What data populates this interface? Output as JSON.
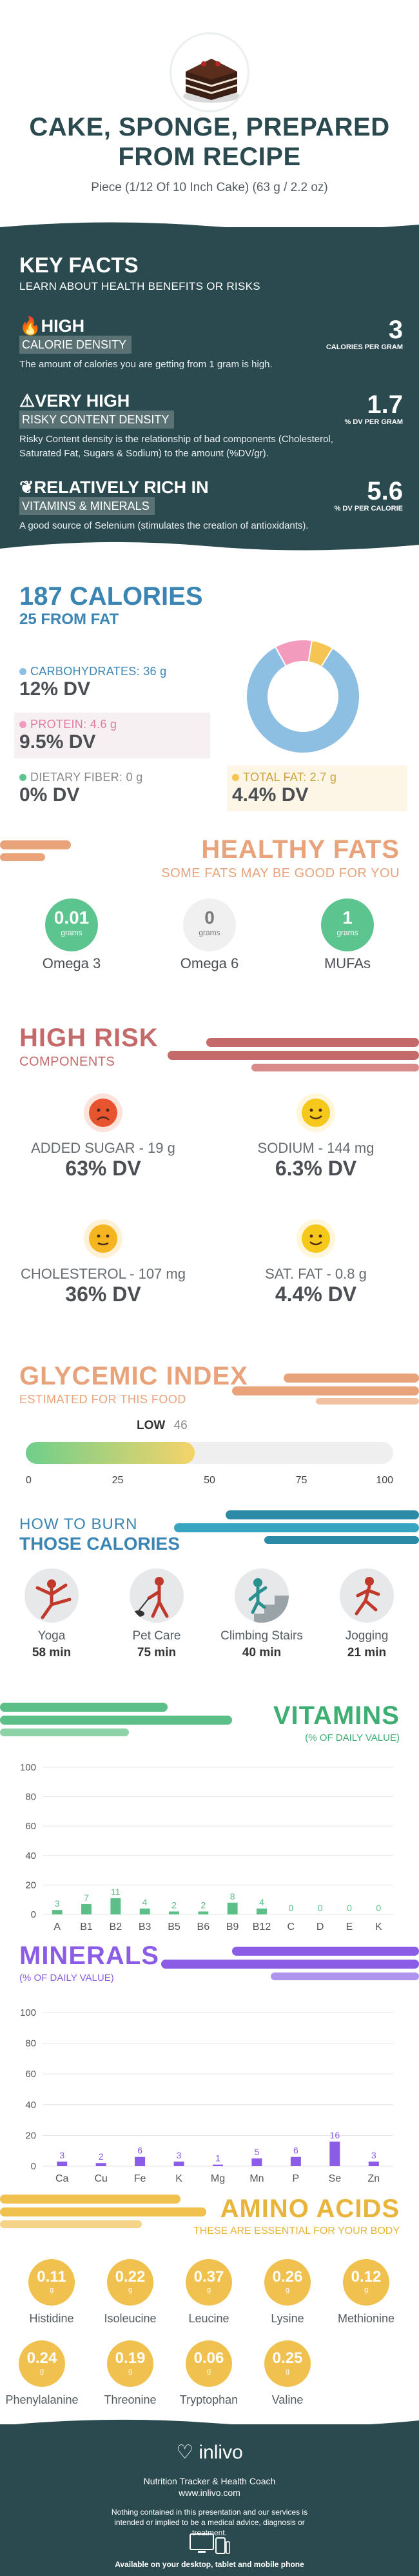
{
  "header": {
    "title_line1": "CAKE, SPONGE, PREPARED",
    "title_line2": "FROM RECIPE",
    "subtitle": "Piece (1/12 Of 10 Inch Cake) (63 g / 2.2 oz)"
  },
  "key_facts": {
    "title": "KEY FACTS",
    "subtitle": "LEARN ABOUT HEALTH BENEFITS OR RISKS",
    "items": [
      {
        "icon": "flame-icon",
        "level": "HIGH",
        "label": "CALORIE DENSITY",
        "desc": "The amount of calories you are getting from 1 gram is high.",
        "value": "3",
        "unit": "CALORIES PER GRAM"
      },
      {
        "icon": "warning-icon",
        "level": "VERY HIGH",
        "label": "RISKY CONTENT DENSITY",
        "desc": "Risky Content density is the relationship of bad components (Cholesterol, Saturated Fat, Sugars & Sodium) to the amount (%DV/gr).",
        "value": "1.7",
        "unit": "% DV PER GRAM"
      },
      {
        "icon": "leaf-icon",
        "level": "RELATIVELY RICH  IN",
        "label": "VITAMINS & MINERALS",
        "desc": "A good source of Selenium (stimulates the creation of antioxidants).",
        "value": "5.6",
        "unit": "% DV PER CALORIE"
      }
    ]
  },
  "calories": {
    "title": "187 CALORIES",
    "from_fat": "25 FROM FAT",
    "nutrients": [
      {
        "label": "CARBOHYDRATES: 36 g",
        "dv": "12% DV",
        "color": "#8dbfe3"
      },
      {
        "label": "PROTEIN: 4.6 g",
        "dv": "9.5% DV",
        "color": "#f29bbd"
      },
      {
        "label": "DIETARY FIBER: 0 g",
        "dv": "0% DV",
        "color": "#5cc58f"
      },
      {
        "label": "TOTAL FAT: 2.7 g",
        "dv": "4.4% DV",
        "color": "#f6c453"
      }
    ]
  },
  "chart_data": {
    "type": "pie",
    "title": "",
    "slices": [
      {
        "label": "Carbohydrates",
        "value": 36,
        "color": "#8dbfe3"
      },
      {
        "label": "Protein",
        "value": 4.6,
        "color": "#f29bbd"
      },
      {
        "label": "Total Fat",
        "value": 2.7,
        "color": "#f6c453"
      }
    ]
  },
  "healthy_fats": {
    "title": "HEALTHY FATS",
    "subtitle": "SOME FATS MAY BE GOOD FOR YOU",
    "items": [
      {
        "name": "Omega 3",
        "value": "0.01",
        "unit": "grams",
        "color": "#5cc58f"
      },
      {
        "name": "Omega 6",
        "value": "0",
        "unit": "grams",
        "color": "#f0f0f0"
      },
      {
        "name": "MUFAs",
        "value": "1",
        "unit": "grams",
        "color": "#5cc58f"
      }
    ]
  },
  "high_risk": {
    "title": "HIGH RISK",
    "subtitle": "COMPONENTS",
    "items": [
      {
        "label": "ADDED SUGAR - 19 g",
        "dv": "63% DV",
        "face": "sad-face-icon"
      },
      {
        "label": "SODIUM - 144 mg",
        "dv": "6.3% DV",
        "face": "happy-face-icon"
      },
      {
        "label": "CHOLESTEROL - 107 mg",
        "dv": "36% DV",
        "face": "neutral-face-icon"
      },
      {
        "label": "SAT. FAT - 0.8 g",
        "dv": "4.4% DV",
        "face": "happy-face-icon"
      }
    ]
  },
  "glycemic": {
    "title": "GLYCEMIC INDEX",
    "subtitle": "ESTIMATED FOR THIS FOOD",
    "level": "LOW",
    "value": 46,
    "ticks": [
      "0",
      "25",
      "50",
      "75",
      "100"
    ]
  },
  "burn": {
    "title_line1": "HOW TO BURN",
    "title_line2": "THOSE CALORIES",
    "activities": [
      {
        "name": "Yoga",
        "minutes": "58 min",
        "icon": "yoga-icon"
      },
      {
        "name": "Pet Care",
        "minutes": "75 min",
        "icon": "dog-walking-icon"
      },
      {
        "name": "Climbing Stairs",
        "minutes": "40 min",
        "icon": "stairs-icon"
      },
      {
        "name": "Jogging",
        "minutes": "21 min",
        "icon": "jogging-icon"
      }
    ]
  },
  "vitamins": {
    "title": "VITAMINS",
    "subtitle": "(% OF DAILY VALUE)",
    "y_ticks": [
      "100",
      "80",
      "60",
      "40",
      "20",
      "0"
    ],
    "categories": [
      "A",
      "B1",
      "B2",
      "B3",
      "B5",
      "B6",
      "B9",
      "B12",
      "C",
      "D",
      "E",
      "K"
    ],
    "values": [
      3,
      7,
      11,
      4,
      2,
      2,
      8,
      4,
      0,
      0,
      0,
      0
    ],
    "labels": [
      "3",
      "7",
      "11",
      "4",
      "2",
      "2",
      "8",
      "4",
      "0",
      "0",
      "0",
      "0"
    ],
    "color": "#5cbf87"
  },
  "minerals": {
    "title": "MINERALS",
    "subtitle": "(% OF DAILY VALUE)",
    "y_ticks": [
      "100",
      "80",
      "60",
      "40",
      "20",
      "0"
    ],
    "categories": [
      "Ca",
      "Cu",
      "Fe",
      "K",
      "Mg",
      "Mn",
      "P",
      "Se",
      "Zn"
    ],
    "values": [
      3,
      2,
      6,
      3,
      1,
      5,
      6,
      16,
      3
    ],
    "labels": [
      "3",
      "2",
      "6",
      "3",
      "1",
      "5",
      "6",
      "16",
      "3"
    ],
    "color": "#8b5ce6"
  },
  "amino": {
    "title": "AMINO ACIDS",
    "subtitle": "THESE ARE ESSENTIAL FOR YOUR BODY",
    "unit": "g",
    "items": [
      {
        "name": "Histidine",
        "value": "0.11"
      },
      {
        "name": "Isoleucine",
        "value": "0.22"
      },
      {
        "name": "Leucine",
        "value": "0.37"
      },
      {
        "name": "Lysine",
        "value": "0.26"
      },
      {
        "name": "Methionine",
        "value": "0.12"
      },
      {
        "name": "Phenylalanine",
        "value": "0.24"
      },
      {
        "name": "Threonine",
        "value": "0.19"
      },
      {
        "name": "Tryptophan",
        "value": "0.06"
      },
      {
        "name": "Valine",
        "value": "0.25"
      }
    ]
  },
  "footer": {
    "brand": "inlivo",
    "tagline": "Nutrition Tracker & Health Coach",
    "url": "www.inlivo.com",
    "disclaimer": "Nothing contained in this presentation and our services is intended or implied to be a medical advice, diagnosis or treatment.",
    "available": "Available on your desktop, tablet and mobile phone"
  }
}
